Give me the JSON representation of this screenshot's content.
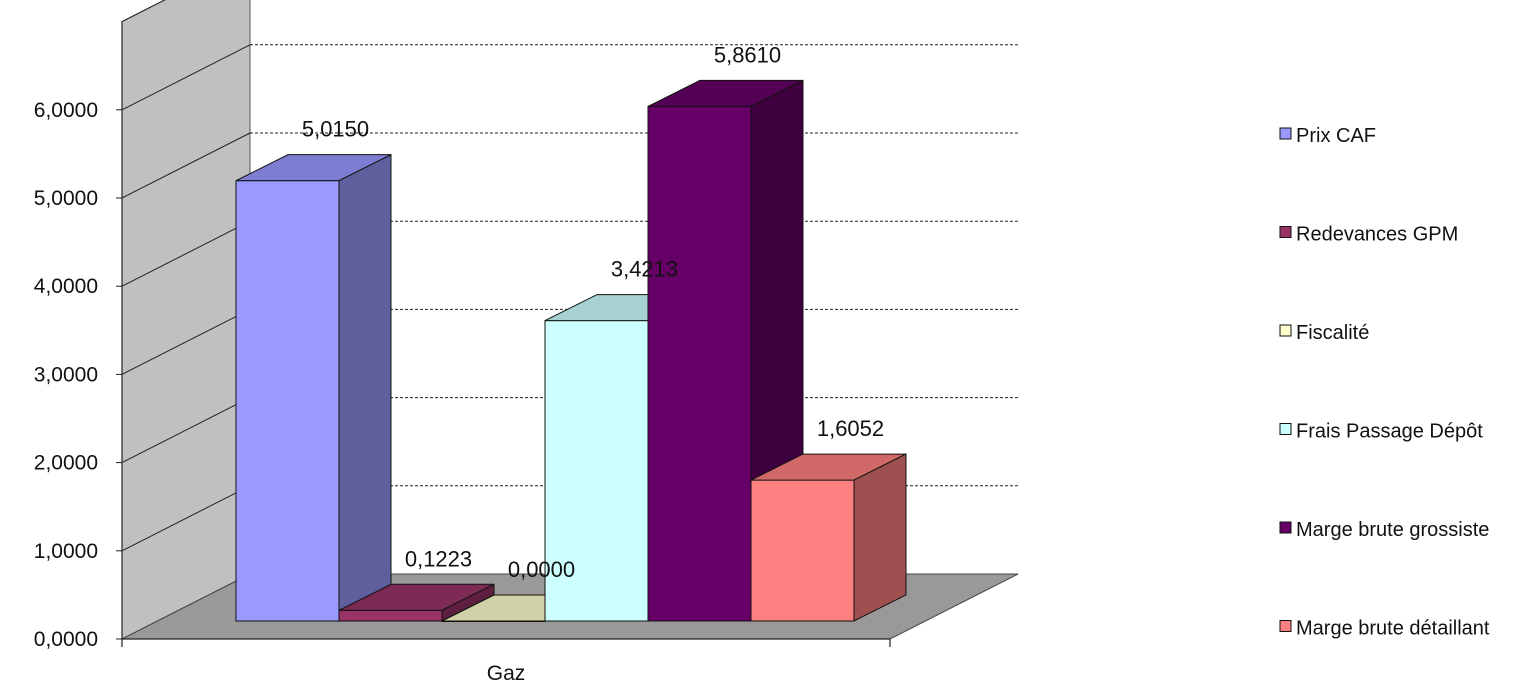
{
  "chart_data": {
    "type": "bar",
    "style": "3d-clustered-column",
    "categories": [
      "Gaz"
    ],
    "series": [
      {
        "name": "Prix CAF",
        "values": [
          5.015
        ],
        "label": "5,0150",
        "color": "#9999FF"
      },
      {
        "name": "Redevances GPM",
        "values": [
          0.1223
        ],
        "label": "0,1223",
        "color": "#993366"
      },
      {
        "name": "Fiscalité",
        "values": [
          0.0
        ],
        "label": "0,0000",
        "color": "#FFFFCC"
      },
      {
        "name": "Frais Passage Dépôt",
        "values": [
          3.4213
        ],
        "label": "3,4213",
        "color": "#CCFFFF"
      },
      {
        "name": "Marge brute grossiste",
        "values": [
          5.861
        ],
        "label": "5,8610",
        "color": "#660066"
      },
      {
        "name": "Marge brute détaillant",
        "values": [
          1.6052
        ],
        "label": "1,6052",
        "color": "#FF8080"
      }
    ],
    "y_ticks": [
      "0,0000",
      "1,0000",
      "2,0000",
      "3,0000",
      "4,0000",
      "5,0000",
      "6,0000"
    ],
    "ylim": [
      0,
      7
    ],
    "grid": "dashed",
    "legend": "right",
    "wall_color": "#C0C0C0",
    "floor_color": "#999999"
  }
}
